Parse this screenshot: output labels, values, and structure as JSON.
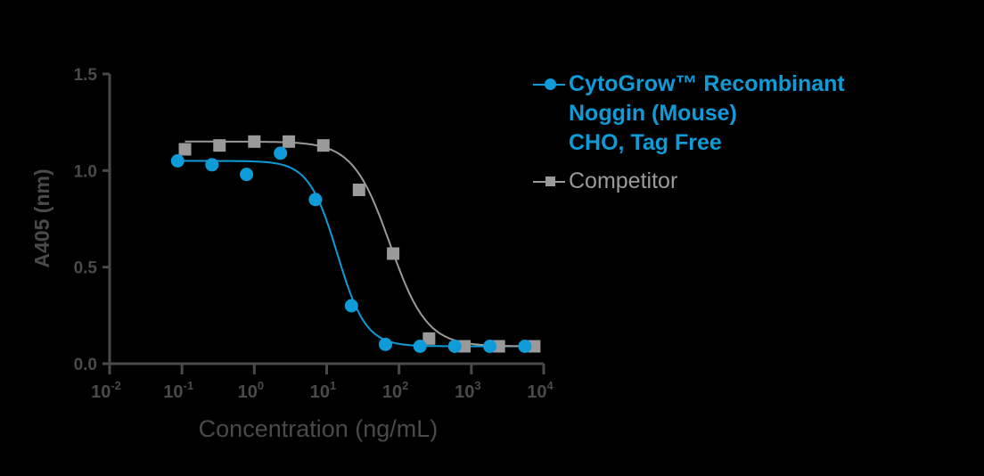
{
  "chart_data": {
    "type": "scatter",
    "title": "",
    "xlabel": "Concentration (ng/mL)",
    "ylabel": "A405 (nm)",
    "xscale": "log",
    "xlim": [
      0.01,
      10000
    ],
    "ylim": [
      0.0,
      1.5
    ],
    "x_ticks": [
      "10-2",
      "10-1",
      "100",
      "101",
      "102",
      "103",
      "104"
    ],
    "y_ticks": [
      "0.0",
      "0.5",
      "1.0",
      "1.5"
    ],
    "grid": false,
    "legend_position": "right",
    "series": [
      {
        "name": "CytoGrow™ Recombinant Noggin (Mouse) CHO, Tag Free",
        "color": "#0f9bd7",
        "marker": "circle",
        "fit": "4PL sigmoid",
        "x": [
          0.087,
          0.26,
          0.78,
          2.3,
          7,
          22,
          65,
          195,
          590,
          1800,
          5500
        ],
        "y": [
          1.05,
          1.03,
          0.98,
          1.09,
          0.85,
          0.3,
          0.1,
          0.09,
          0.09,
          0.09,
          0.09
        ]
      },
      {
        "name": "Competitor",
        "color": "#9a9a9a",
        "marker": "square",
        "fit": "4PL sigmoid",
        "x": [
          0.11,
          0.33,
          1,
          3,
          9,
          28,
          83,
          260,
          800,
          2400,
          7400
        ],
        "y": [
          1.11,
          1.13,
          1.15,
          1.15,
          1.13,
          0.9,
          0.57,
          0.13,
          0.09,
          0.09,
          0.09
        ]
      }
    ]
  },
  "legend": {
    "series1_lines": [
      "CytoGrow™ Recombinant",
      "Noggin (Mouse)",
      "CHO, Tag Free"
    ],
    "series2_label": "Competitor"
  },
  "axes": {
    "xlabel": "Concentration (ng/mL)",
    "ylabel": "A405 (nm)"
  }
}
